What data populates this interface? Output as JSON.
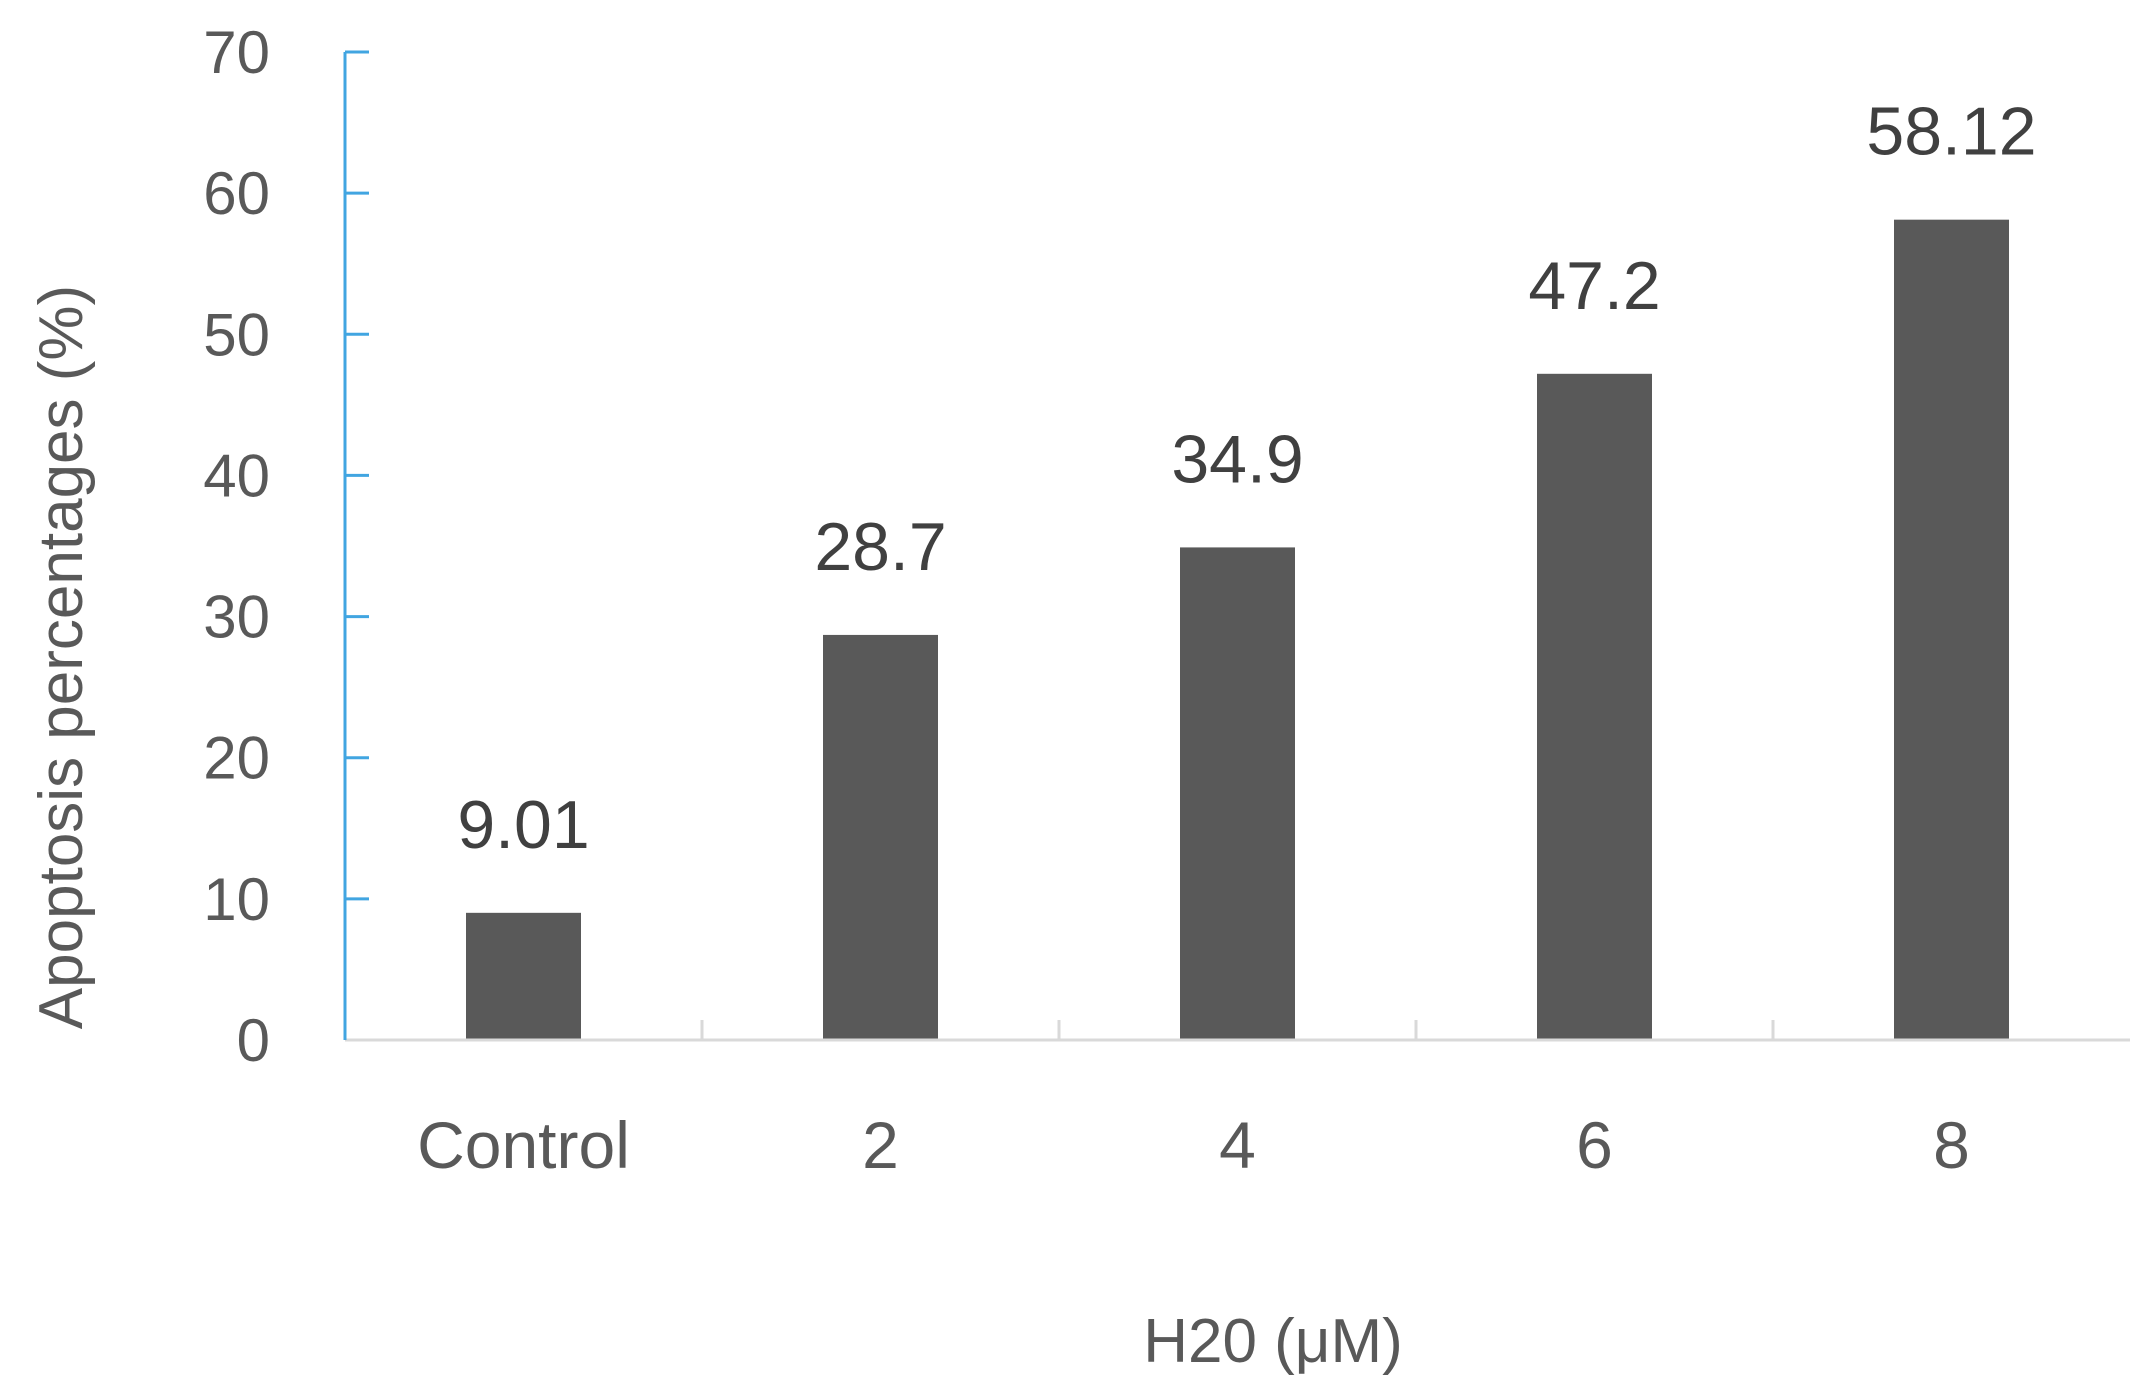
{
  "chart_data": {
    "type": "bar",
    "categories": [
      "Control",
      "2",
      "4",
      "6",
      "8"
    ],
    "values": [
      9.01,
      28.7,
      34.9,
      47.2,
      58.12
    ],
    "data_labels": [
      "9.01",
      "28.7",
      "34.9",
      "47.2",
      "58.12"
    ],
    "title": "",
    "xlabel": "H20 (μM)",
    "ylabel": "Apoptosis percentages (%)",
    "ylim": [
      0,
      70
    ],
    "yticks": [
      "0",
      "10",
      "20",
      "30",
      "40",
      "50",
      "60",
      "70"
    ],
    "grid": false,
    "legend": "none",
    "colors": {
      "bar": "#595959",
      "y_axis": "#41a5e1",
      "x_axis": "#d9d9d9"
    }
  }
}
